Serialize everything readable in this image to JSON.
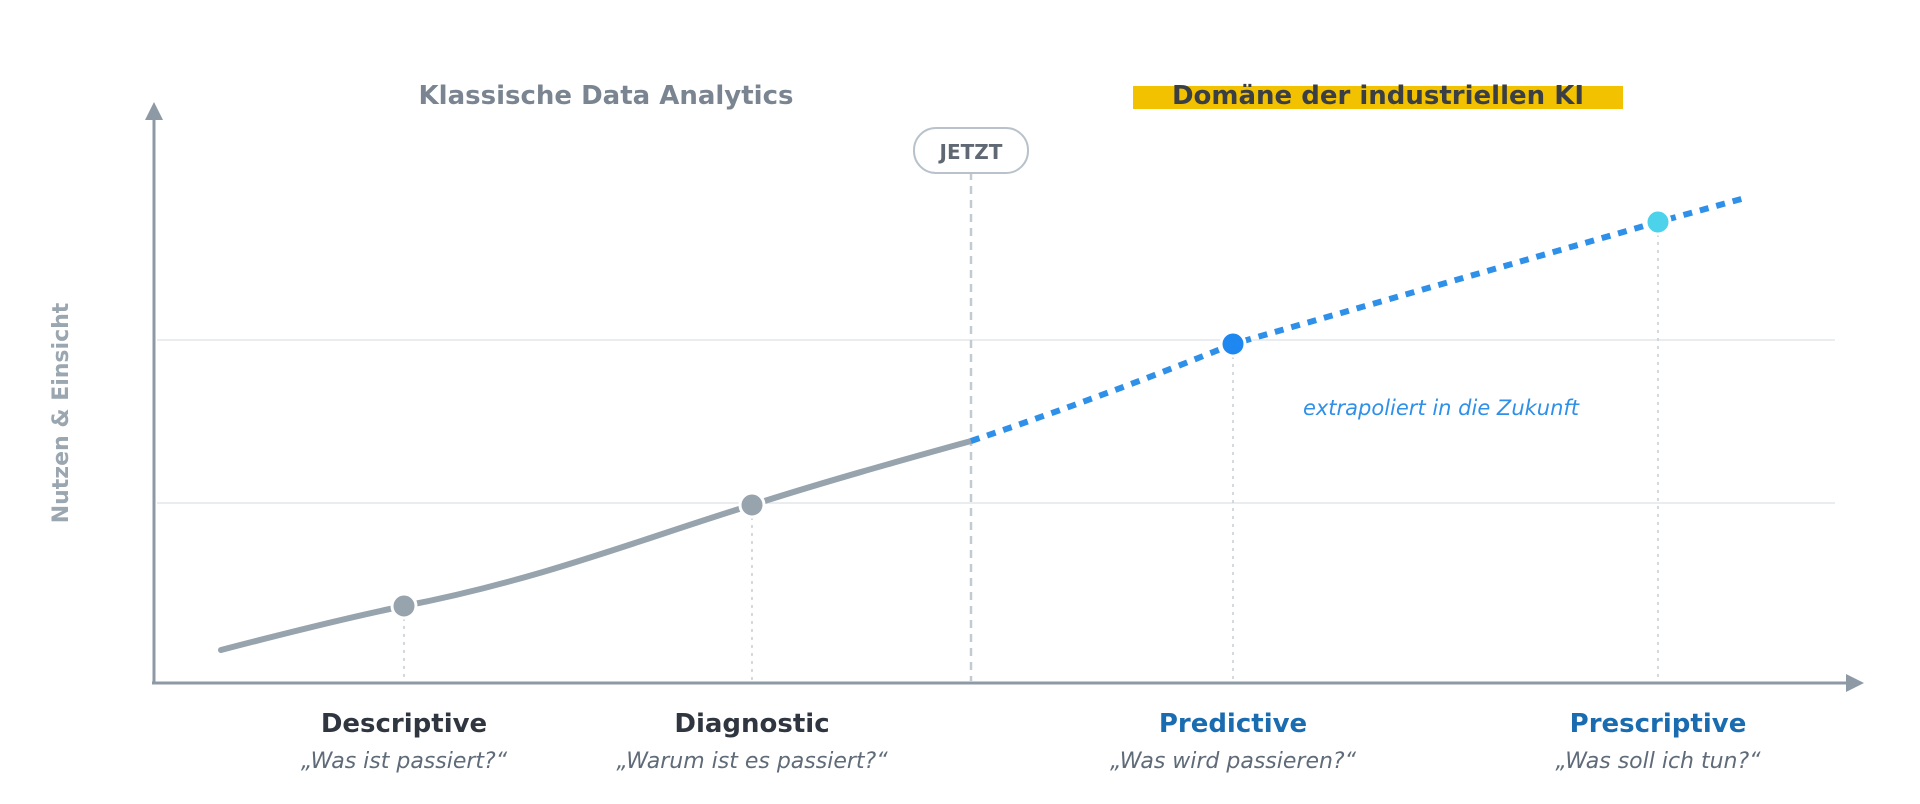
{
  "headers": {
    "classic": "Klassische Data Analytics",
    "ai": "Domäne der industriellen KI"
  },
  "now_label": "JETZT",
  "y_axis_label": "Nutzen & Einsicht",
  "annotation": "extrapoliert in die Zukunft",
  "stages": [
    {
      "name": "Descriptive",
      "question": "„Was ist passiert?“",
      "kind": "past",
      "value": 0.23
    },
    {
      "name": "Diagnostic",
      "question": "„Warum ist es passiert?“",
      "kind": "past",
      "value": 0.53
    },
    {
      "name": "Predictive",
      "question": "„Was wird passieren?“",
      "kind": "future",
      "value": 1.0
    },
    {
      "name": "Prescriptive",
      "question": "„Was soll ich tun?“",
      "kind": "future",
      "value": 1.36
    }
  ],
  "colors": {
    "axis": "#8d9aa5",
    "past_line": "#97a3ad",
    "future_line": "#2e90e8",
    "predictive_dot": "#1e88f0",
    "prescriptive_dot": "#4dd2ec",
    "past_text": "#2f3640",
    "future_text": "#1a6cb0",
    "header_grey": "#7a8591",
    "highlight": "#f2c200",
    "annotation": "#2e90e8"
  }
}
